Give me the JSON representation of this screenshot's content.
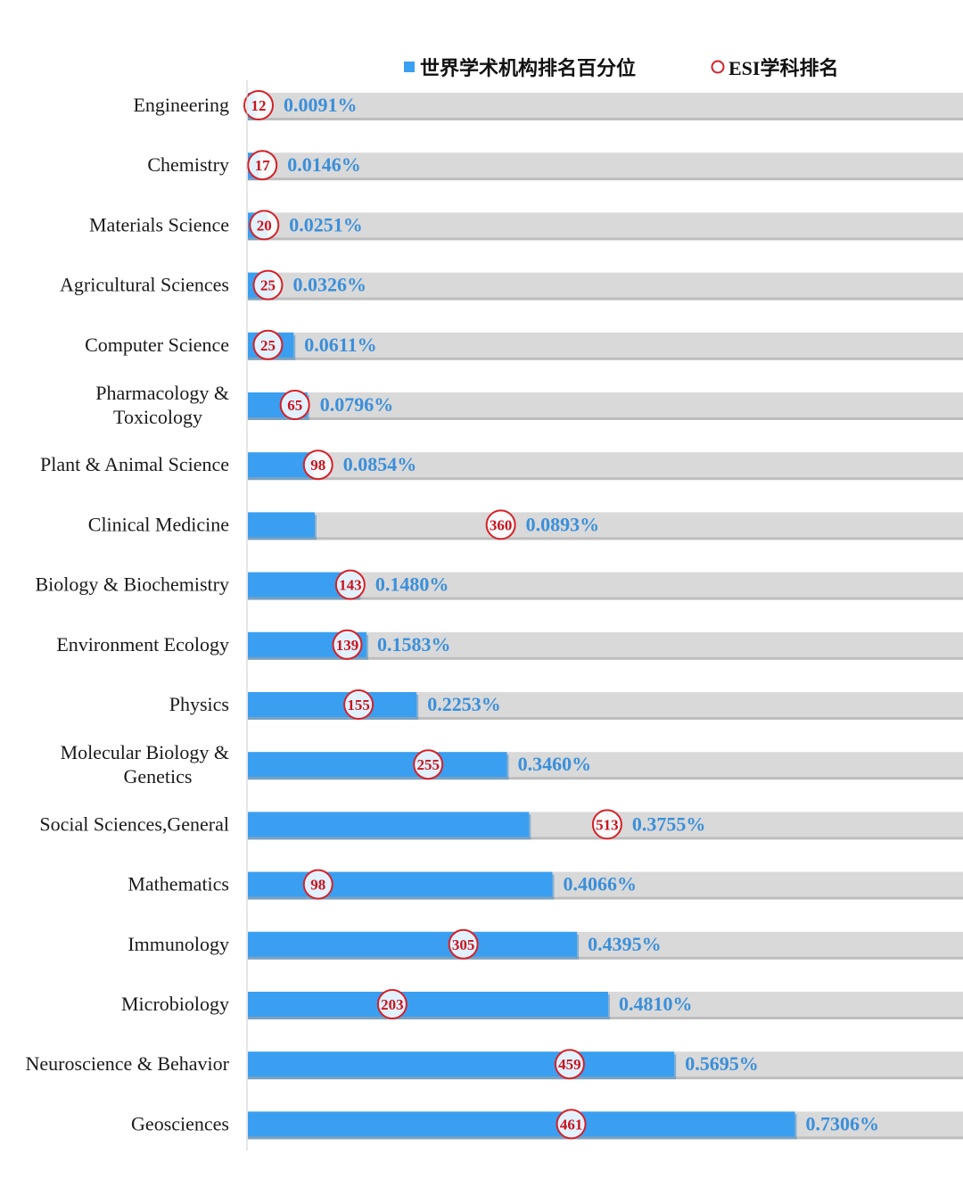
{
  "chart_data": {
    "type": "bar",
    "orientation": "horizontal",
    "title": "",
    "legend": {
      "position": "top-right",
      "entries": [
        {
          "name": "世界学术机构排名百分位",
          "marker": "square",
          "color": "#3a9ff0"
        },
        {
          "name": "ESI学科排名",
          "marker": "circle",
          "color": "#d62027"
        }
      ]
    },
    "colors": {
      "bar": "#3a9ff0",
      "track": "#d9d9d9",
      "pct_label": "#3a8fdb",
      "rank_circle": "#d62027",
      "rank_text": "#c8141e",
      "axis": "#cccccc"
    },
    "xlim": [
      0,
      0.955
    ],
    "categories": [
      {
        "name": [
          "Engineering"
        ],
        "percentile": 0.0091,
        "pct_label": "0.0091%",
        "rank": "12",
        "rank_pos": 0.0091
      },
      {
        "name": [
          "Chemistry"
        ],
        "percentile": 0.0146,
        "pct_label": "0.0146%",
        "rank": "17",
        "rank_pos": 0.0146
      },
      {
        "name": [
          "Materials Science"
        ],
        "percentile": 0.0251,
        "pct_label": "0.0251%",
        "rank": "20",
        "rank_pos": 0.017
      },
      {
        "name": [
          "Agricultural Sciences"
        ],
        "percentile": 0.0326,
        "pct_label": "0.0326%",
        "rank": "25",
        "rank_pos": 0.022
      },
      {
        "name": [
          "Computer Science"
        ],
        "percentile": 0.0611,
        "pct_label": "0.0611%",
        "rank": "25",
        "rank_pos": 0.022
      },
      {
        "name": [
          "Pharmacology &",
          "Toxicology"
        ],
        "percentile": 0.0796,
        "pct_label": "0.0796%",
        "rank": "65",
        "rank_pos": 0.058
      },
      {
        "name": [
          "Plant & Animal Science"
        ],
        "percentile": 0.0854,
        "pct_label": "0.0854%",
        "rank": "98",
        "rank_pos": 0.089
      },
      {
        "name": [
          "Clinical Medicine"
        ],
        "percentile": 0.0893,
        "pct_label": "0.0893%",
        "rank": "360",
        "rank_pos": 0.333
      },
      {
        "name": [
          "Biology & Biochemistry"
        ],
        "percentile": 0.148,
        "pct_label": "0.1480%",
        "rank": "143",
        "rank_pos": 0.132
      },
      {
        "name": [
          "Environment Ecology"
        ],
        "percentile": 0.1583,
        "pct_label": "0.1583%",
        "rank": "139",
        "rank_pos": 0.128
      },
      {
        "name": [
          "Physics"
        ],
        "percentile": 0.2253,
        "pct_label": "0.2253%",
        "rank": "155",
        "rank_pos": 0.143
      },
      {
        "name": [
          "Molecular Biology &",
          "Genetics"
        ],
        "percentile": 0.346,
        "pct_label": "0.3460%",
        "rank": "255",
        "rank_pos": 0.236
      },
      {
        "name": [
          "Social Sciences,General"
        ],
        "percentile": 0.3755,
        "pct_label": "0.3755%",
        "rank": "513",
        "rank_pos": 0.475
      },
      {
        "name": [
          "Mathematics"
        ],
        "percentile": 0.4066,
        "pct_label": "0.4066%",
        "rank": "98",
        "rank_pos": 0.089
      },
      {
        "name": [
          "Immunology"
        ],
        "percentile": 0.4395,
        "pct_label": "0.4395%",
        "rank": "305",
        "rank_pos": 0.283
      },
      {
        "name": [
          "Microbiology"
        ],
        "percentile": 0.481,
        "pct_label": "0.4810%",
        "rank": "203",
        "rank_pos": 0.188
      },
      {
        "name": [
          "Neuroscience & Behavior"
        ],
        "percentile": 0.5695,
        "pct_label": "0.5695%",
        "rank": "459",
        "rank_pos": 0.425
      },
      {
        "name": [
          "Geosciences"
        ],
        "percentile": 0.7306,
        "pct_label": "0.7306%",
        "rank": "461",
        "rank_pos": 0.427
      }
    ]
  }
}
